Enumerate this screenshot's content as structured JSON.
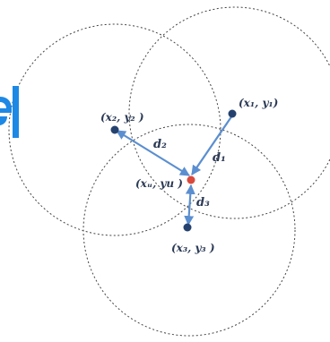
{
  "diagram": {
    "type": "trilateration",
    "colors": {
      "circle_stroke": "#444444",
      "arrow": "#5b8fd0",
      "anchor_node": "#25426f",
      "unknown_node": "#d94a3d",
      "partial_glyph": "#1e88e5"
    },
    "anchors": [
      {
        "id": "p1",
        "label": "(x₁, y₁)"
      },
      {
        "id": "p2",
        "label": "(x₂, y₂ )"
      },
      {
        "id": "p3",
        "label": "(x₃, y₃ )"
      }
    ],
    "unknown": {
      "label": "(xᵤ, yu )"
    },
    "distances": [
      {
        "id": "d1",
        "label": "d₁"
      },
      {
        "id": "d2",
        "label": "d₂"
      },
      {
        "id": "d3",
        "label": "d₃"
      }
    ]
  }
}
